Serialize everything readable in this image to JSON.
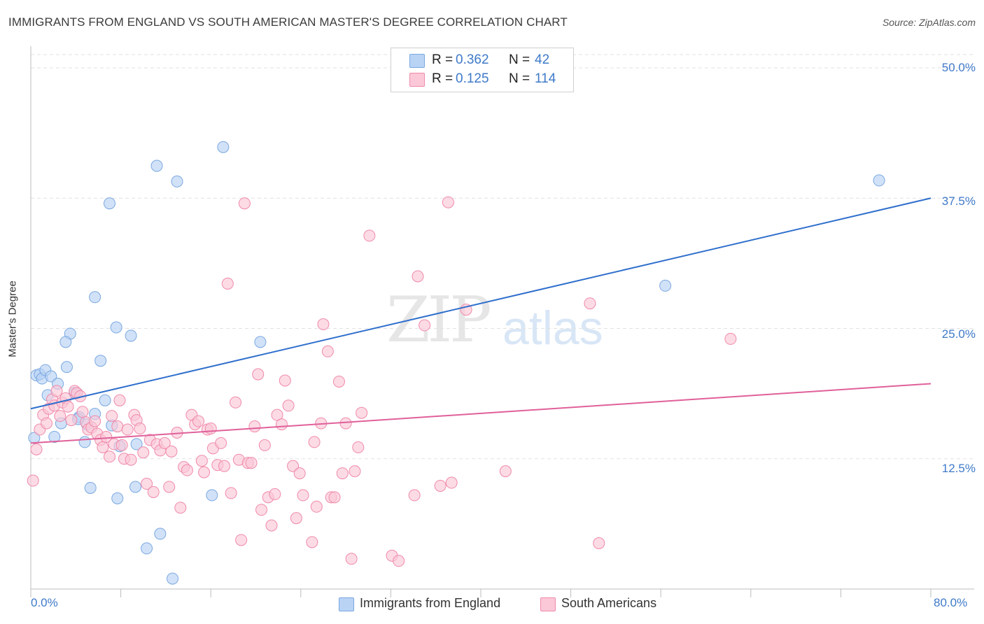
{
  "title": "IMMIGRANTS FROM ENGLAND VS SOUTH AMERICAN MASTER'S DEGREE CORRELATION CHART",
  "source": "Source: ZipAtlas.com",
  "watermark": {
    "zip": "ZIP",
    "atlas": "atlas"
  },
  "legend_top": {
    "rows": [
      {
        "r_label": "R =",
        "r_value": "0.362",
        "n_label": "N =",
        "n_value": "42",
        "color": "#b9d3f5",
        "border": "#7aa7e0"
      },
      {
        "r_label": "R =",
        "r_value": "0.125",
        "n_label": "N =",
        "n_value": "114",
        "color": "#fbc8d7",
        "border": "#f08aaa"
      }
    ]
  },
  "legend_bottom": [
    {
      "label": "Immigrants from England",
      "color": "#b9d3f5",
      "border": "#7aa7e0"
    },
    {
      "label": "South Americans",
      "color": "#fbc8d7",
      "border": "#f08aaa"
    }
  ],
  "chart_data": {
    "type": "scatter",
    "title": "IMMIGRANTS FROM ENGLAND VS SOUTH AMERICAN MASTER'S DEGREE CORRELATION CHART",
    "xlabel": "",
    "ylabel": "Master's Degree",
    "xlim": [
      0,
      80
    ],
    "ylim": [
      0,
      50
    ],
    "x_tick_labels": [
      "0.0%",
      "80.0%"
    ],
    "y_ticks": [
      12.5,
      25.0,
      37.5,
      50.0
    ],
    "y_tick_labels": [
      "12.5%",
      "25.0%",
      "37.5%",
      "50.0%"
    ],
    "grid": true,
    "legend_position": "top-center",
    "series": [
      {
        "name": "Immigrants from England",
        "color": "#7aa7e0",
        "fill": "#b9d3f5",
        "line_color": "#2f6fcc",
        "trend": {
          "x": [
            0,
            80
          ],
          "y": [
            17.3,
            37.5
          ]
        },
        "points": [
          [
            0.3,
            14.5
          ],
          [
            0.5,
            20.5
          ],
          [
            0.8,
            20.6
          ],
          [
            1.0,
            20.2
          ],
          [
            1.3,
            21.0
          ],
          [
            1.5,
            18.6
          ],
          [
            1.8,
            20.4
          ],
          [
            2.1,
            14.6
          ],
          [
            2.4,
            19.7
          ],
          [
            2.7,
            15.9
          ],
          [
            3.2,
            21.3
          ],
          [
            3.5,
            24.5
          ],
          [
            3.1,
            23.7
          ],
          [
            4.1,
            18.8
          ],
          [
            4.3,
            16.5
          ],
          [
            4.8,
            14.1
          ],
          [
            5.0,
            15.8
          ],
          [
            5.3,
            9.7
          ],
          [
            5.7,
            28.0
          ],
          [
            5.7,
            16.8
          ],
          [
            6.2,
            21.9
          ],
          [
            6.6,
            18.1
          ],
          [
            7.0,
            37.0
          ],
          [
            7.2,
            15.7
          ],
          [
            7.6,
            25.1
          ],
          [
            7.7,
            8.7
          ],
          [
            7.9,
            13.7
          ],
          [
            8.9,
            24.3
          ],
          [
            9.3,
            9.8
          ],
          [
            9.4,
            13.9
          ],
          [
            10.3,
            3.9
          ],
          [
            11.2,
            40.6
          ],
          [
            11.5,
            5.3
          ],
          [
            12.6,
            1.0
          ],
          [
            13.0,
            39.1
          ],
          [
            16.1,
            9.0
          ],
          [
            17.1,
            42.4
          ],
          [
            20.4,
            23.7
          ],
          [
            3.9,
            18.8
          ],
          [
            56.4,
            29.1
          ],
          [
            75.4,
            39.2
          ],
          [
            4.2,
            16.3
          ]
        ]
      },
      {
        "name": "South Americans",
        "color": "#f08aaa",
        "fill": "#fbc8d7",
        "line_color": "#e0609a",
        "trend": {
          "x": [
            0,
            80
          ],
          "y": [
            14.0,
            19.7
          ]
        },
        "points": [
          [
            0.2,
            10.4
          ],
          [
            0.5,
            13.4
          ],
          [
            0.8,
            15.3
          ],
          [
            1.1,
            16.7
          ],
          [
            1.4,
            15.9
          ],
          [
            1.6,
            17.3
          ],
          [
            1.9,
            18.2
          ],
          [
            2.1,
            17.6
          ],
          [
            2.3,
            19.0
          ],
          [
            2.6,
            16.6
          ],
          [
            2.8,
            17.9
          ],
          [
            3.1,
            18.3
          ],
          [
            3.3,
            17.5
          ],
          [
            3.6,
            16.2
          ],
          [
            3.9,
            19.0
          ],
          [
            4.1,
            18.8
          ],
          [
            4.4,
            18.5
          ],
          [
            4.6,
            17.0
          ],
          [
            4.9,
            16.0
          ],
          [
            5.1,
            15.3
          ],
          [
            5.4,
            15.5
          ],
          [
            5.7,
            16.1
          ],
          [
            5.9,
            14.9
          ],
          [
            6.2,
            14.3
          ],
          [
            6.4,
            13.6
          ],
          [
            6.7,
            14.6
          ],
          [
            7.0,
            12.7
          ],
          [
            7.2,
            16.6
          ],
          [
            7.4,
            13.9
          ],
          [
            7.7,
            15.6
          ],
          [
            7.9,
            18.1
          ],
          [
            8.1,
            13.8
          ],
          [
            8.3,
            12.5
          ],
          [
            8.6,
            15.3
          ],
          [
            8.9,
            12.4
          ],
          [
            9.2,
            16.7
          ],
          [
            9.4,
            16.2
          ],
          [
            9.7,
            15.4
          ],
          [
            10.0,
            13.1
          ],
          [
            10.3,
            10.1
          ],
          [
            10.6,
            14.3
          ],
          [
            10.9,
            9.3
          ],
          [
            11.2,
            13.9
          ],
          [
            11.5,
            13.3
          ],
          [
            11.9,
            14.0
          ],
          [
            12.3,
            9.8
          ],
          [
            12.5,
            13.2
          ],
          [
            13.0,
            15.0
          ],
          [
            13.3,
            7.8
          ],
          [
            13.6,
            11.7
          ],
          [
            13.9,
            11.4
          ],
          [
            14.3,
            16.7
          ],
          [
            14.6,
            15.8
          ],
          [
            14.9,
            16.1
          ],
          [
            15.2,
            12.3
          ],
          [
            15.4,
            11.2
          ],
          [
            15.7,
            15.3
          ],
          [
            16.0,
            15.4
          ],
          [
            16.2,
            13.5
          ],
          [
            16.6,
            11.9
          ],
          [
            16.9,
            14.0
          ],
          [
            17.2,
            11.8
          ],
          [
            17.5,
            29.3
          ],
          [
            17.8,
            9.2
          ],
          [
            18.2,
            17.9
          ],
          [
            18.5,
            12.4
          ],
          [
            18.7,
            4.7
          ],
          [
            19.0,
            37.0
          ],
          [
            19.3,
            12.1
          ],
          [
            19.6,
            12.1
          ],
          [
            19.9,
            15.6
          ],
          [
            20.2,
            20.6
          ],
          [
            20.5,
            7.6
          ],
          [
            20.8,
            13.8
          ],
          [
            21.1,
            8.8
          ],
          [
            21.4,
            6.1
          ],
          [
            21.7,
            9.1
          ],
          [
            21.9,
            16.7
          ],
          [
            22.3,
            15.8
          ],
          [
            22.6,
            20.0
          ],
          [
            22.9,
            17.6
          ],
          [
            23.3,
            11.8
          ],
          [
            23.6,
            6.8
          ],
          [
            23.9,
            11.1
          ],
          [
            24.2,
            9.0
          ],
          [
            25.0,
            4.5
          ],
          [
            25.2,
            14.1
          ],
          [
            25.4,
            7.9
          ],
          [
            25.8,
            15.9
          ],
          [
            26.0,
            25.4
          ],
          [
            26.4,
            22.8
          ],
          [
            26.7,
            8.8
          ],
          [
            27.0,
            8.8
          ],
          [
            27.4,
            19.9
          ],
          [
            27.7,
            11.1
          ],
          [
            28.0,
            15.9
          ],
          [
            28.5,
            2.9
          ],
          [
            28.8,
            11.3
          ],
          [
            29.1,
            13.6
          ],
          [
            29.4,
            16.9
          ],
          [
            30.1,
            33.9
          ],
          [
            32.1,
            3.2
          ],
          [
            32.7,
            2.7
          ],
          [
            34.1,
            9.0
          ],
          [
            34.4,
            30.0
          ],
          [
            35.0,
            25.3
          ],
          [
            36.4,
            9.9
          ],
          [
            37.1,
            37.1
          ],
          [
            37.4,
            10.2
          ],
          [
            38.7,
            26.8
          ],
          [
            42.2,
            11.3
          ],
          [
            49.7,
            27.4
          ],
          [
            50.5,
            4.4
          ],
          [
            62.2,
            24.0
          ]
        ]
      }
    ]
  }
}
